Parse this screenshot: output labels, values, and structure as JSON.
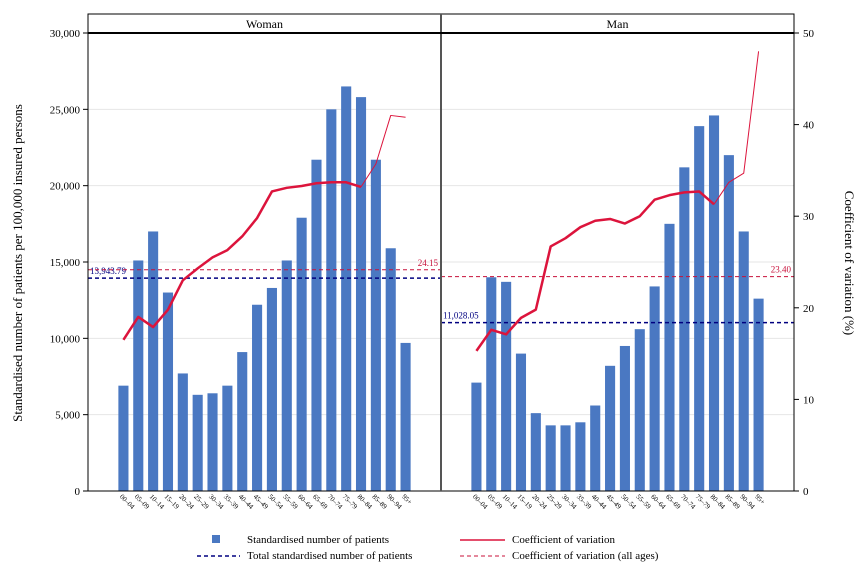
{
  "chart_data": {
    "type": "bar",
    "left_axis_label": "Standardised number of patients per 100,000 insured persons",
    "right_axis_label": "Coefficient of variation (%)",
    "left_ticks": [
      "0",
      "5,000",
      "10,000",
      "15,000",
      "20,000",
      "25,000",
      "30,000"
    ],
    "right_ticks": [
      "0",
      "10",
      "20",
      "30",
      "40",
      "50"
    ],
    "ylim_left": [
      0,
      30000
    ],
    "ylim_right": [
      0,
      50
    ],
    "categories": [
      "00–04",
      "05–09",
      "10–14",
      "15–19",
      "20–24",
      "25–29",
      "30–34",
      "35–39",
      "40–44",
      "45–49",
      "50–54",
      "55–59",
      "60–64",
      "65–69",
      "70–74",
      "75–79",
      "80–84",
      "85–89",
      "90–94",
      "95+"
    ],
    "panels": [
      {
        "title": "Woman",
        "bars": [
          6900,
          15100,
          17000,
          13000,
          7700,
          6300,
          6400,
          6900,
          9100,
          12200,
          13300,
          15100,
          17900,
          21700,
          25000,
          26500,
          25800,
          21700,
          15900,
          9700
        ],
        "cv": [
          16.5,
          19.0,
          17.9,
          19.8,
          23.0,
          24.3,
          25.5,
          26.3,
          27.8,
          29.8,
          32.7,
          33.1,
          33.3,
          33.6,
          33.7,
          33.7,
          33.2,
          35.7,
          41.0,
          40.8
        ],
        "total_patients": 13943.79,
        "total_label": "13,943.79",
        "cv_all": 24.15,
        "cv_all_label": "24.15"
      },
      {
        "title": "Man",
        "bars": [
          7100,
          14000,
          13700,
          9000,
          5100,
          4300,
          4300,
          4500,
          5600,
          8200,
          9500,
          10600,
          13400,
          17500,
          21200,
          23900,
          24600,
          22000,
          17000,
          12600
        ],
        "cv": [
          15.3,
          17.6,
          17.1,
          18.9,
          19.8,
          26.7,
          27.6,
          28.8,
          29.5,
          29.7,
          29.2,
          30.0,
          31.8,
          32.3,
          32.6,
          32.7,
          31.3,
          33.7,
          34.7,
          48.0
        ],
        "total_patients": 11028.05,
        "total_label": "11,028.05",
        "cv_all": 23.4,
        "cv_all_label": "23.40"
      }
    ],
    "legend": [
      {
        "label": "Standardised number of patients",
        "symbol": "square"
      },
      {
        "label": "Coefficient of variation",
        "symbol": "line"
      },
      {
        "label": "Total standardised number of patients",
        "symbol": "dash-navy"
      },
      {
        "label": "Coefficient of variation (all ages)",
        "symbol": "dash-red"
      }
    ],
    "colors": {
      "bar": "#4a78c2",
      "cv_line": "#dc143c",
      "total_line": "#000080",
      "cv_all_line": "#c8103a",
      "grid": "#e6e6e6"
    },
    "grid": true
  }
}
